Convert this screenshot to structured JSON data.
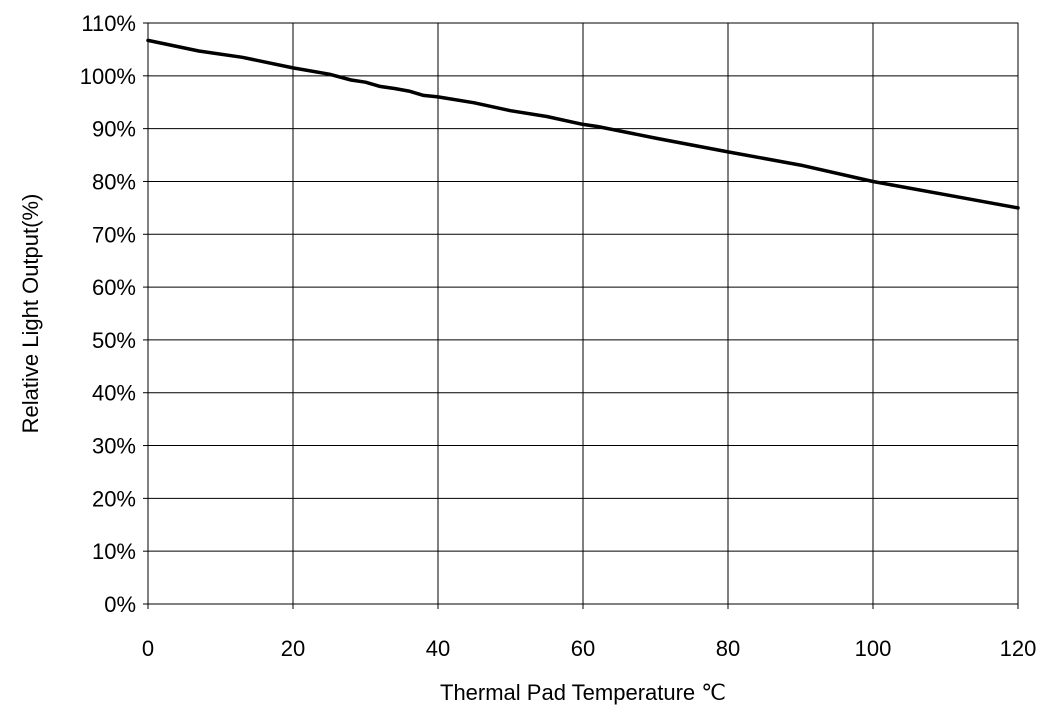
{
  "chart_data": {
    "type": "line",
    "title": "",
    "xlabel": "Thermal Pad Temperature ℃",
    "ylabel": "Relative Light Output(%)",
    "xlim": [
      0,
      120
    ],
    "ylim": [
      0,
      110
    ],
    "grid": true,
    "legend": "none",
    "x_ticks": [
      "0",
      "20",
      "40",
      "60",
      "80",
      "100",
      "120"
    ],
    "y_ticks": [
      "0%",
      "10%",
      "20%",
      "30%",
      "40%",
      "50%",
      "60%",
      "70%",
      "80%",
      "90%",
      "100%",
      "110%"
    ],
    "series": [
      {
        "color": "#000000",
        "x": [
          0,
          7,
          13,
          20,
          25,
          28,
          30,
          32,
          34,
          36,
          38,
          40,
          45,
          50,
          55,
          60,
          62,
          70,
          80,
          90,
          100,
          110,
          120
        ],
        "y": [
          106.7,
          104.7,
          103.5,
          101.5,
          100.3,
          99.2,
          98.8,
          98.0,
          97.6,
          97.1,
          96.3,
          96.0,
          94.9,
          93.4,
          92.3,
          90.8,
          90.4,
          88.2,
          85.6,
          83.1,
          80.0,
          77.5,
          75.0
        ]
      }
    ]
  }
}
